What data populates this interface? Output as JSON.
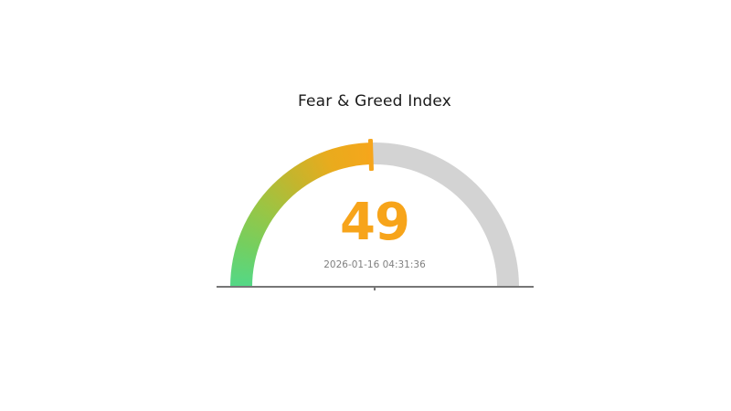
{
  "page": {
    "background": "#ffffff"
  },
  "chart_data": {
    "type": "gauge",
    "title": "Fear & Greed Index",
    "value": 49,
    "min": 0,
    "max": 100,
    "timestamp": "2026-01-16 04:31:36",
    "arc_span_degrees": 180,
    "scale_direction": "0 at left end, 100 at right end, semicircle opening downward",
    "gradient_colors": [
      "#53d887",
      "#74cf60",
      "#9ac544",
      "#c4b52d",
      "#e9ab1d",
      "#f5a61b"
    ],
    "track_color": "#d3d3d3",
    "value_color": "#f7a41a",
    "needle_color": "#f6a51c",
    "title_color": "#1a1a1a",
    "timestamp_color": "#808080",
    "baseline_color": "#767676",
    "legend": false,
    "grid": false
  }
}
